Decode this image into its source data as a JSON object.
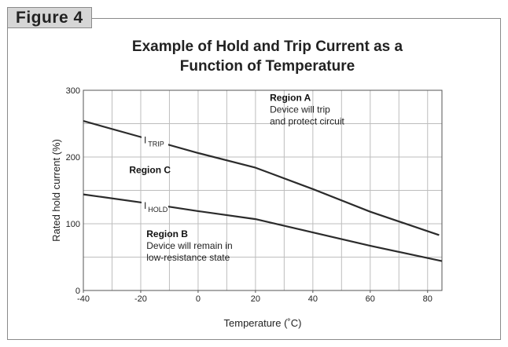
{
  "figure_tab": "Figure 4",
  "chart_data": {
    "type": "line",
    "title": "Example of Hold and Trip Current as a Function of Temperature",
    "title_lines": [
      "Example of Hold and Trip Current as a",
      "Function of Temperature"
    ],
    "xlabel": "Temperature (˚C)",
    "ylabel": "Rated hold current (%)",
    "xlim": [
      -40,
      85
    ],
    "ylim": [
      0,
      300
    ],
    "x_ticks": [
      -40,
      -20,
      0,
      20,
      40,
      60,
      80
    ],
    "y_ticks": [
      0,
      100,
      200,
      300
    ],
    "x_grid_step": 10,
    "y_grid_step": 50,
    "grid": true,
    "series": [
      {
        "name_main": "I",
        "name_sub": "TRIP",
        "points": [
          [
            -40,
            254
          ],
          [
            -20,
            230
          ],
          [
            0,
            206
          ],
          [
            20,
            184
          ],
          [
            25,
            176
          ],
          [
            40,
            152
          ],
          [
            60,
            118
          ],
          [
            84,
            83
          ]
        ],
        "label_at": [
          -20,
          230
        ]
      },
      {
        "name_main": "I",
        "name_sub": "HOLD",
        "points": [
          [
            -40,
            144
          ],
          [
            -20,
            132
          ],
          [
            0,
            119
          ],
          [
            20,
            107
          ],
          [
            25,
            102
          ],
          [
            40,
            87
          ],
          [
            60,
            67
          ],
          [
            85,
            44
          ]
        ],
        "label_at": [
          -20,
          132
        ]
      }
    ],
    "annotations": [
      {
        "title": "Region A",
        "lines": [
          "Device will trip",
          "and protect circuit"
        ],
        "at": [
          25,
          284
        ]
      },
      {
        "title": "Region C",
        "lines": [],
        "at": [
          -24,
          176
        ]
      },
      {
        "title": "Region B",
        "lines": [
          "Device will remain in",
          "low-resistance state"
        ],
        "at": [
          -18,
          80
        ]
      }
    ]
  }
}
